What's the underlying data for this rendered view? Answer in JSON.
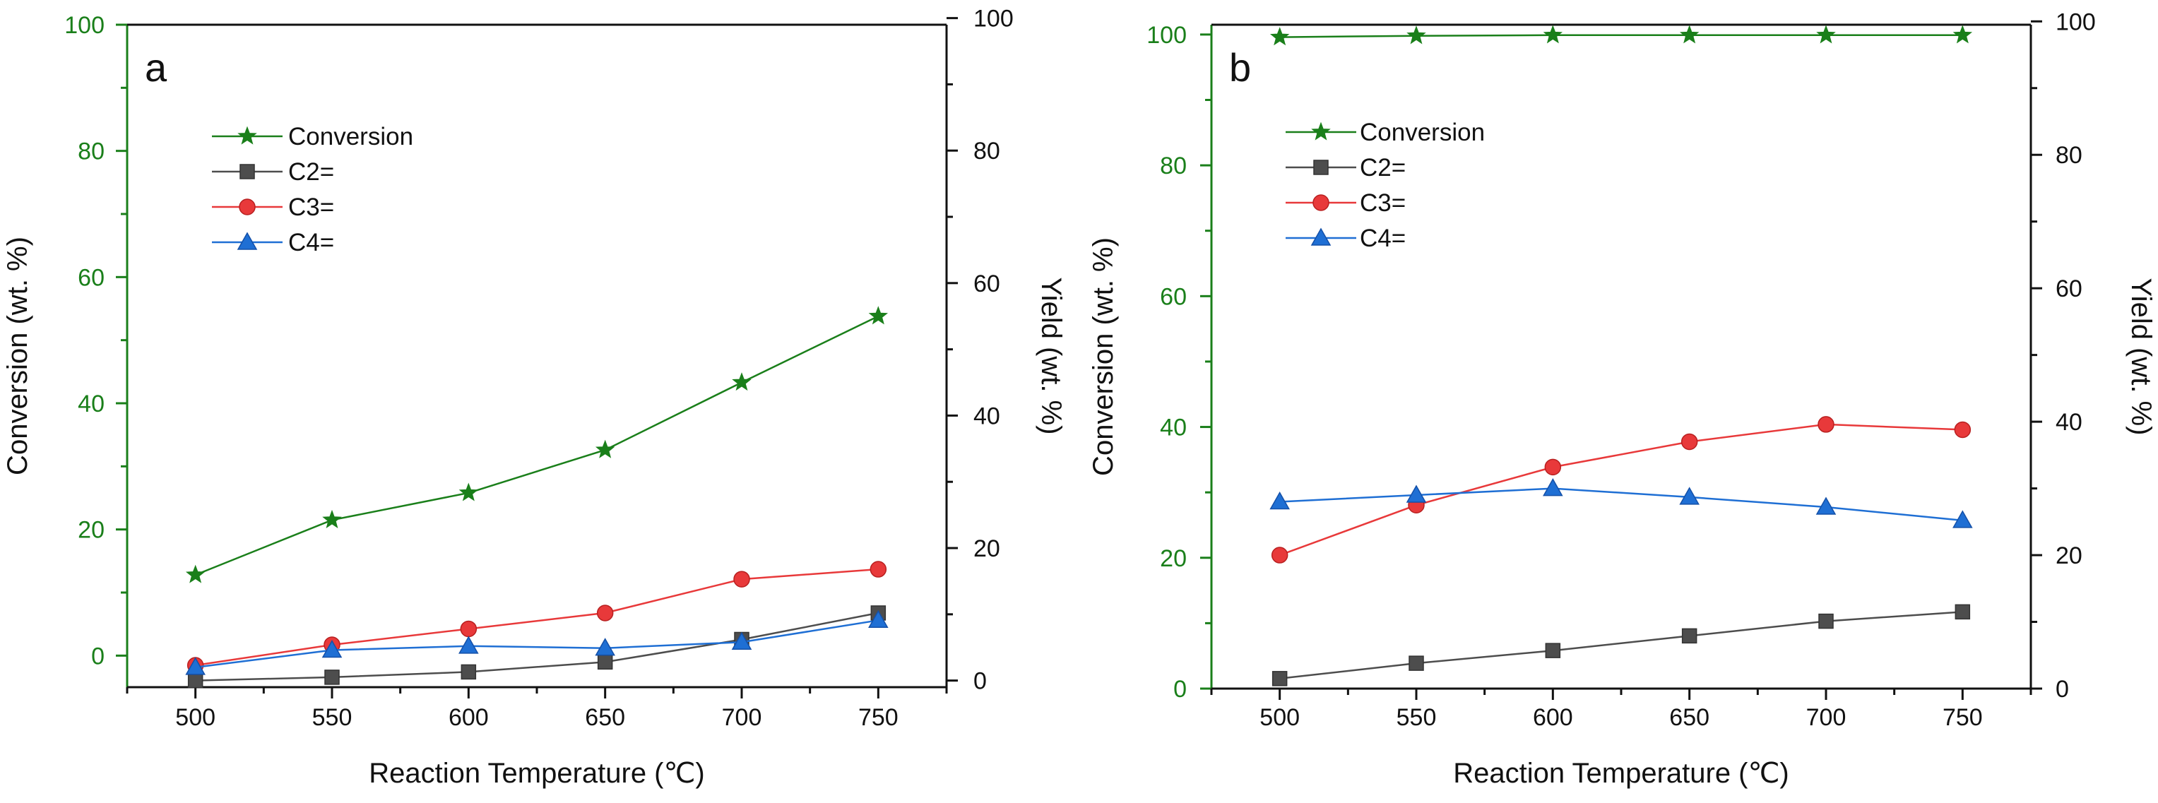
{
  "chart_data": [
    {
      "type": "line",
      "panel_label": "a",
      "xlabel": "Reaction Temperature (℃)",
      "ylabel_left": "Conversion (wt. %)",
      "ylabel_right": "Yield (wt. %)",
      "x": [
        500,
        550,
        600,
        650,
        700,
        750
      ],
      "x_ticks": [
        "500",
        "550",
        "600",
        "650",
        "700",
        "750"
      ],
      "xlim": [
        475,
        775
      ],
      "ylim_left": [
        -5,
        100
      ],
      "ylim_right": [
        -1,
        99
      ],
      "left_ticks": [
        "0",
        "20",
        "40",
        "60",
        "80",
        "100"
      ],
      "right_ticks": [
        "0",
        "20",
        "40",
        "60",
        "80",
        "100"
      ],
      "legend_position": "upper-left",
      "series": [
        {
          "name": "Conversion",
          "axis": "left",
          "marker": "star",
          "color": "#1a7f1a",
          "values": [
            12.8,
            21.5,
            25.8,
            32.6,
            43.3,
            53.8
          ]
        },
        {
          "name": "C2=",
          "axis": "right",
          "marker": "square",
          "color": "#4d4d4d",
          "values": [
            0.0,
            0.5,
            1.3,
            2.8,
            6.2,
            10.2
          ]
        },
        {
          "name": "C3=",
          "axis": "right",
          "marker": "circle",
          "color": "#e8393a",
          "values": [
            2.3,
            5.4,
            7.8,
            10.2,
            15.3,
            16.8
          ]
        },
        {
          "name": "C4=",
          "axis": "right",
          "marker": "triangle",
          "color": "#1f6fd4",
          "values": [
            2.0,
            4.6,
            5.2,
            4.9,
            5.8,
            9.1
          ]
        }
      ]
    },
    {
      "type": "line",
      "panel_label": "b",
      "xlabel": "Reaction Temperature (℃)",
      "ylabel_left": "Conversion (wt. %)",
      "ylabel_right": "Yield (wt. %)",
      "x": [
        500,
        550,
        600,
        650,
        700,
        750
      ],
      "x_ticks": [
        "500",
        "550",
        "600",
        "650",
        "700",
        "750"
      ],
      "xlim": [
        475,
        775
      ],
      "ylim_left": [
        0,
        101.5
      ],
      "ylim_right": [
        0,
        99.5
      ],
      "left_ticks": [
        "0",
        "20",
        "40",
        "60",
        "80",
        "100"
      ],
      "right_ticks": [
        "0",
        "20",
        "40",
        "60",
        "80",
        "100"
      ],
      "legend_position": "upper-left",
      "series": [
        {
          "name": "Conversion",
          "axis": "left",
          "marker": "star",
          "color": "#1a7f1a",
          "values": [
            99.6,
            99.8,
            99.9,
            99.9,
            99.9,
            99.9
          ]
        },
        {
          "name": "C2=",
          "axis": "right",
          "marker": "square",
          "color": "#4d4d4d",
          "values": [
            1.5,
            3.8,
            5.7,
            7.9,
            10.1,
            11.5
          ]
        },
        {
          "name": "C3=",
          "axis": "right",
          "marker": "circle",
          "color": "#e8393a",
          "values": [
            20.0,
            27.5,
            33.2,
            37.0,
            39.6,
            38.8
          ]
        },
        {
          "name": "C4=",
          "axis": "right",
          "marker": "triangle",
          "color": "#1f6fd4",
          "values": [
            28.0,
            29.0,
            30.0,
            28.7,
            27.2,
            25.2
          ]
        }
      ]
    }
  ]
}
